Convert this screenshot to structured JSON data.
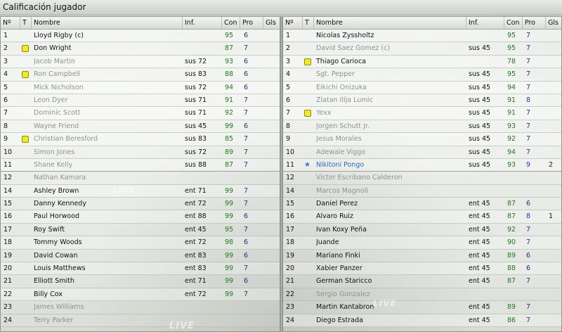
{
  "window": {
    "title": "Calificación jugador"
  },
  "columns": {
    "no": "Nº",
    "t": "T",
    "name": "Nombre",
    "inf": "Inf.",
    "con": "Con",
    "pro": "Pro",
    "gls": "Gls"
  },
  "watermark": "LIVE",
  "colors": {
    "con": "#1d7a1d",
    "pro": "#22337a",
    "pro_highlight": "#1b35c9",
    "name_dim": "#8e938c",
    "name_highlight": "#2a6fc0",
    "yellow_card": "#f2ea1a"
  },
  "left_team": {
    "rows": [
      {
        "no": "1",
        "card": "",
        "name": "Lloyd Rigby (c)",
        "style": "normal",
        "inf": "",
        "con": "95",
        "pro": "6",
        "gls": ""
      },
      {
        "no": "2",
        "card": "yellow",
        "name": "Don Wright",
        "style": "normal",
        "inf": "",
        "con": "87",
        "pro": "7",
        "gls": ""
      },
      {
        "no": "3",
        "card": "",
        "name": "Jacob Martin",
        "style": "dim",
        "inf": "sus 72",
        "con": "93",
        "pro": "6",
        "gls": ""
      },
      {
        "no": "4",
        "card": "yellow",
        "name": "Ron Campbell",
        "style": "dim",
        "inf": "sus 83",
        "con": "88",
        "pro": "6",
        "gls": ""
      },
      {
        "no": "5",
        "card": "",
        "name": "Mick Nicholson",
        "style": "dim",
        "inf": "sus 72",
        "con": "94",
        "pro": "6",
        "gls": ""
      },
      {
        "no": "6",
        "card": "",
        "name": "Leon Dyer",
        "style": "dim",
        "inf": "sus 71",
        "con": "91",
        "pro": "7",
        "gls": ""
      },
      {
        "no": "7",
        "card": "",
        "name": "Dominic Scott",
        "style": "dim",
        "inf": "sus 71",
        "con": "92",
        "pro": "7",
        "gls": ""
      },
      {
        "no": "8",
        "card": "",
        "name": "Wayne Friend",
        "style": "dim",
        "inf": "sus 45",
        "con": "99",
        "pro": "6",
        "gls": ""
      },
      {
        "no": "9",
        "card": "yellow",
        "name": "Christian Beresford",
        "style": "dim",
        "inf": "sus 83",
        "con": "85",
        "pro": "7",
        "gls": ""
      },
      {
        "no": "10",
        "card": "",
        "name": "Simon Jones",
        "style": "dim",
        "inf": "sus 72",
        "con": "89",
        "pro": "7",
        "gls": ""
      },
      {
        "no": "11",
        "card": "",
        "name": "Shane Kelly",
        "style": "dim",
        "inf": "sus 88",
        "con": "87",
        "pro": "7",
        "gls": ""
      },
      {
        "no": "12",
        "card": "",
        "name": "Nathan Kamara",
        "style": "dim",
        "inf": "",
        "con": "",
        "pro": "",
        "gls": ""
      },
      {
        "no": "14",
        "card": "",
        "name": "Ashley Brown",
        "style": "normal",
        "inf": "ent 71",
        "con": "99",
        "pro": "7",
        "gls": ""
      },
      {
        "no": "15",
        "card": "",
        "name": "Danny Kennedy",
        "style": "normal",
        "inf": "ent 72",
        "con": "99",
        "pro": "7",
        "gls": ""
      },
      {
        "no": "16",
        "card": "",
        "name": "Paul Horwood",
        "style": "normal",
        "inf": "ent 88",
        "con": "99",
        "pro": "6",
        "gls": ""
      },
      {
        "no": "17",
        "card": "",
        "name": "Roy Swift",
        "style": "normal",
        "inf": "ent 45",
        "con": "95",
        "pro": "7",
        "gls": ""
      },
      {
        "no": "18",
        "card": "",
        "name": "Tommy Woods",
        "style": "normal",
        "inf": "ent 72",
        "con": "98",
        "pro": "6",
        "gls": ""
      },
      {
        "no": "19",
        "card": "",
        "name": "David Cowan",
        "style": "normal",
        "inf": "ent 83",
        "con": "99",
        "pro": "6",
        "gls": ""
      },
      {
        "no": "20",
        "card": "",
        "name": "Louis Matthews",
        "style": "normal",
        "inf": "ent 83",
        "con": "99",
        "pro": "7",
        "gls": ""
      },
      {
        "no": "21",
        "card": "",
        "name": "Elliott Smith",
        "style": "normal",
        "inf": "ent 71",
        "con": "99",
        "pro": "6",
        "gls": ""
      },
      {
        "no": "22",
        "card": "",
        "name": "Billy Cox",
        "style": "normal",
        "inf": "ent 72",
        "con": "99",
        "pro": "7",
        "gls": ""
      },
      {
        "no": "23",
        "card": "",
        "name": "James Williams",
        "style": "dim",
        "inf": "",
        "con": "",
        "pro": "",
        "gls": ""
      },
      {
        "no": "24",
        "card": "",
        "name": "Terry Parker",
        "style": "dim",
        "inf": "",
        "con": "",
        "pro": "",
        "gls": ""
      }
    ]
  },
  "right_team": {
    "rows": [
      {
        "no": "1",
        "card": "",
        "name": "Nicolas Zyssholtz",
        "style": "normal",
        "inf": "",
        "con": "95",
        "pro": "7",
        "gls": ""
      },
      {
        "no": "2",
        "card": "",
        "name": "David Saez Gomez (c)",
        "style": "dim",
        "inf": "sus 45",
        "con": "95",
        "pro": "7",
        "gls": ""
      },
      {
        "no": "3",
        "card": "yellow",
        "name": "Thiago Carioca",
        "style": "normal",
        "inf": "",
        "con": "78",
        "pro": "7",
        "gls": ""
      },
      {
        "no": "4",
        "card": "",
        "name": "Sgt. Pepper",
        "style": "dim",
        "inf": "sus 45",
        "con": "95",
        "pro": "7",
        "gls": ""
      },
      {
        "no": "5",
        "card": "",
        "name": "Eikichi Onizuka",
        "style": "dim",
        "inf": "sus 45",
        "con": "94",
        "pro": "7",
        "gls": ""
      },
      {
        "no": "6",
        "card": "",
        "name": "Zlatan Illja Lumic",
        "style": "dim",
        "inf": "sus 45",
        "con": "91",
        "pro": "8",
        "gls": ""
      },
      {
        "no": "7",
        "card": "yellow",
        "name": "Yexx",
        "style": "dim",
        "inf": "sus 45",
        "con": "91",
        "pro": "7",
        "gls": ""
      },
      {
        "no": "8",
        "card": "",
        "name": "Jorgen Schutt Jr.",
        "style": "dim",
        "inf": "sus 45",
        "con": "93",
        "pro": "7",
        "gls": ""
      },
      {
        "no": "9",
        "card": "",
        "name": "Jesus Morales",
        "style": "dim",
        "inf": "sus 45",
        "con": "92",
        "pro": "7",
        "gls": ""
      },
      {
        "no": "10",
        "card": "",
        "name": "Adewale Viggo",
        "style": "dim",
        "inf": "sus 45",
        "con": "94",
        "pro": "7",
        "gls": ""
      },
      {
        "no": "11",
        "card": "star",
        "name": "Nikitoni Pongo",
        "style": "highlight",
        "inf": "sus 45",
        "con": "93",
        "pro": "9",
        "gls": "2"
      },
      {
        "no": "12",
        "card": "",
        "name": "Victor Escribano Calderon",
        "style": "dim",
        "inf": "",
        "con": "",
        "pro": "",
        "gls": ""
      },
      {
        "no": "14",
        "card": "",
        "name": "Marcos Magnoli",
        "style": "dim",
        "inf": "",
        "con": "",
        "pro": "",
        "gls": ""
      },
      {
        "no": "15",
        "card": "",
        "name": "Daniel Perez",
        "style": "normal",
        "inf": "ent 45",
        "con": "87",
        "pro": "6",
        "gls": ""
      },
      {
        "no": "16",
        "card": "",
        "name": "Alvaro Ruiz",
        "style": "normal",
        "inf": "ent 45",
        "con": "87",
        "pro": "8",
        "gls": "1"
      },
      {
        "no": "17",
        "card": "",
        "name": "Ivan Koxy Peña",
        "style": "normal",
        "inf": "ent 45",
        "con": "92",
        "pro": "7",
        "gls": ""
      },
      {
        "no": "18",
        "card": "",
        "name": "Juande",
        "style": "normal",
        "inf": "ent 45",
        "con": "90",
        "pro": "7",
        "gls": ""
      },
      {
        "no": "19",
        "card": "",
        "name": "Mariano Finki",
        "style": "normal",
        "inf": "ent 45",
        "con": "89",
        "pro": "6",
        "gls": ""
      },
      {
        "no": "20",
        "card": "",
        "name": "Xabier Panzer",
        "style": "normal",
        "inf": "ent 45",
        "con": "88",
        "pro": "6",
        "gls": ""
      },
      {
        "no": "21",
        "card": "",
        "name": "German Staricco",
        "style": "normal",
        "inf": "ent 45",
        "con": "87",
        "pro": "7",
        "gls": ""
      },
      {
        "no": "22",
        "card": "",
        "name": "Sergio Gonzalez",
        "style": "dim",
        "inf": "",
        "con": "",
        "pro": "",
        "gls": ""
      },
      {
        "no": "23",
        "card": "",
        "name": "Martin Kantabron",
        "style": "normal",
        "inf": "ent 45",
        "con": "89",
        "pro": "7",
        "gls": ""
      },
      {
        "no": "24",
        "card": "",
        "name": "Diego Estrada",
        "style": "normal",
        "inf": "ent 45",
        "con": "86",
        "pro": "7",
        "gls": ""
      }
    ]
  }
}
